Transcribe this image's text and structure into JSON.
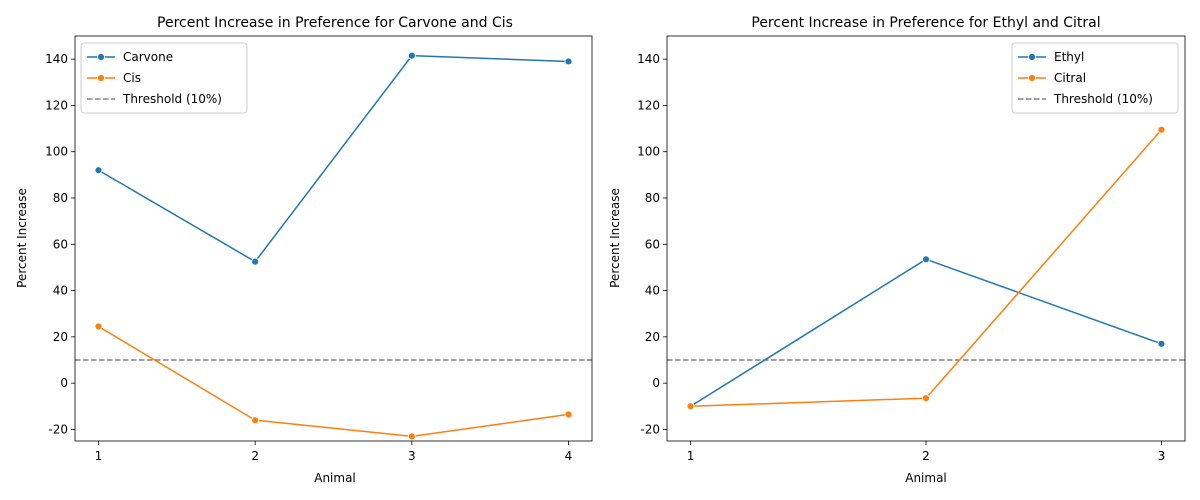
{
  "chart_data": [
    {
      "type": "line",
      "title": "Percent Increase in Preference for Carvone and Cis",
      "xlabel": "Animal",
      "ylabel": "Percent Increase",
      "x": [
        1,
        2,
        3,
        4
      ],
      "xticks": [
        "1",
        "2",
        "3",
        "4"
      ],
      "xlim": [
        0.85,
        4.15
      ],
      "ylim": [
        -25,
        150
      ],
      "yticks": [
        -20,
        0,
        20,
        40,
        60,
        80,
        100,
        120,
        140
      ],
      "grid": false,
      "legend_position": "top-left",
      "series": [
        {
          "name": "Carvone",
          "color": "#1f77b4",
          "values": [
            92,
            52.5,
            141.5,
            139
          ]
        },
        {
          "name": "Cis",
          "color": "#ff7f0e",
          "values": [
            24.5,
            -16,
            -23,
            -13.5
          ]
        }
      ],
      "threshold": {
        "name": "Threshold (10%)",
        "value": 10,
        "color": "#808080"
      }
    },
    {
      "type": "line",
      "title": "Percent Increase in Preference for Ethyl and Citral",
      "xlabel": "Animal",
      "ylabel": "Percent Increase",
      "x": [
        1,
        2,
        3
      ],
      "xticks": [
        "1",
        "2",
        "3"
      ],
      "xlim": [
        0.9,
        3.1
      ],
      "ylim": [
        -25,
        150
      ],
      "yticks": [
        -20,
        0,
        20,
        40,
        60,
        80,
        100,
        120,
        140
      ],
      "grid": false,
      "legend_position": "top-right",
      "series": [
        {
          "name": "Ethyl",
          "color": "#1f77b4",
          "values": [
            -10,
            53.5,
            17
          ]
        },
        {
          "name": "Citral",
          "color": "#ff7f0e",
          "values": [
            -10,
            -6.5,
            109.5
          ]
        }
      ],
      "threshold": {
        "name": "Threshold (10%)",
        "value": 10,
        "color": "#808080"
      }
    }
  ]
}
